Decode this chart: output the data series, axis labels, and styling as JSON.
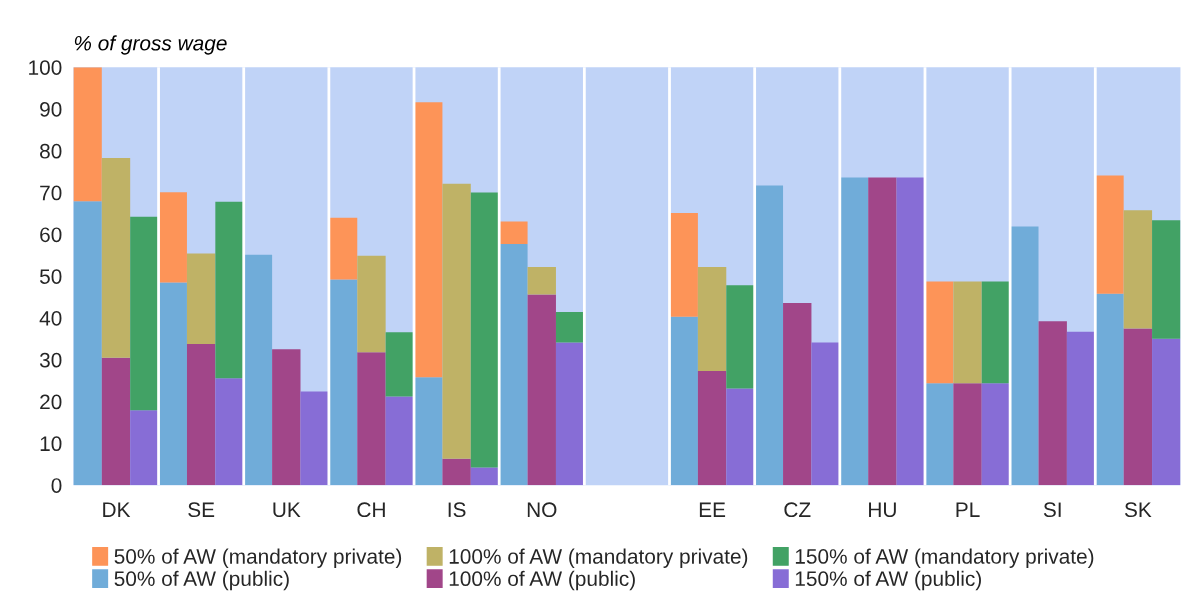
{
  "chart_data": {
    "type": "bar",
    "stacked": true,
    "ylabel": "% of gross wage",
    "categories": [
      null,
      "DK",
      null,
      null,
      "SE",
      null,
      null,
      "UK",
      null,
      null,
      "CH",
      null,
      null,
      "IS",
      null,
      null,
      "NO",
      null,
      null,
      null,
      null,
      null,
      "EE",
      null,
      null,
      "CZ",
      null,
      null,
      "HU",
      null,
      null,
      "PL",
      null,
      null,
      "SI",
      null,
      null,
      "SK",
      null
    ],
    "series": [
      {
        "name": "50% of AW (public)",
        "color": "#70acd9",
        "values": [
          67.9,
          null,
          null,
          48.5,
          null,
          null,
          55.1,
          null,
          null,
          49.2,
          null,
          null,
          25.8,
          null,
          null,
          57.7,
          null,
          null,
          null,
          null,
          null,
          40.3,
          null,
          null,
          71.7,
          null,
          null,
          73.6,
          null,
          null,
          24.4,
          null,
          null,
          61.9,
          null,
          null,
          45.8,
          null,
          null
        ]
      },
      {
        "name": "50% of AW (mandatory private)",
        "color": "#fd9458",
        "values": [
          32.1,
          null,
          null,
          21.6,
          null,
          null,
          null,
          null,
          null,
          14.8,
          null,
          null,
          65.8,
          null,
          null,
          5.4,
          null,
          null,
          null,
          null,
          null,
          24.8,
          null,
          null,
          null,
          null,
          null,
          null,
          null,
          null,
          24.3,
          null,
          null,
          null,
          null,
          null,
          28.3,
          null,
          null
        ]
      },
      {
        "name": "100% of AW (public)",
        "color": "#a14689",
        "values": [
          null,
          30.5,
          null,
          null,
          33.8,
          null,
          null,
          32.5,
          null,
          null,
          31.8,
          null,
          null,
          6.3,
          null,
          null,
          45.6,
          null,
          null,
          null,
          null,
          null,
          27.3,
          null,
          null,
          43.6,
          null,
          null,
          73.6,
          null,
          null,
          24.4,
          null,
          null,
          39.2,
          null,
          null,
          37.5,
          null
        ]
      },
      {
        "name": "100% of AW (mandatory private)",
        "color": "#bfb266",
        "values": [
          null,
          47.8,
          null,
          null,
          21.6,
          null,
          null,
          null,
          null,
          null,
          23.1,
          null,
          null,
          65.8,
          null,
          null,
          6.6,
          null,
          null,
          null,
          null,
          null,
          24.9,
          null,
          null,
          null,
          null,
          null,
          null,
          null,
          null,
          24.3,
          null,
          null,
          null,
          null,
          null,
          28.3,
          null
        ]
      },
      {
        "name": "150% of AW (public)",
        "color": "#876dd6",
        "values": [
          null,
          null,
          17.9,
          null,
          null,
          25.6,
          null,
          null,
          22.4,
          null,
          null,
          21.2,
          null,
          null,
          4.2,
          null,
          null,
          34.1,
          null,
          null,
          null,
          null,
          null,
          23.1,
          null,
          null,
          34.1,
          null,
          null,
          73.6,
          null,
          null,
          24.4,
          null,
          null,
          36.7,
          null,
          null,
          35.0
        ]
      },
      {
        "name": "150% of AW (mandatory private)",
        "color": "#42a265",
        "values": [
          null,
          null,
          46.3,
          null,
          null,
          42.2,
          null,
          null,
          null,
          null,
          null,
          15.4,
          null,
          null,
          65.8,
          null,
          null,
          7.3,
          null,
          null,
          null,
          null,
          null,
          24.7,
          null,
          null,
          null,
          null,
          null,
          null,
          null,
          null,
          24.3,
          null,
          null,
          null,
          null,
          null,
          28.4
        ]
      }
    ],
    "ylim": [
      0,
      100
    ],
    "yticks": [
      0,
      10,
      20,
      30,
      40,
      50,
      60,
      70,
      80,
      90,
      100
    ],
    "grid": "x",
    "legend": "bottom"
  }
}
